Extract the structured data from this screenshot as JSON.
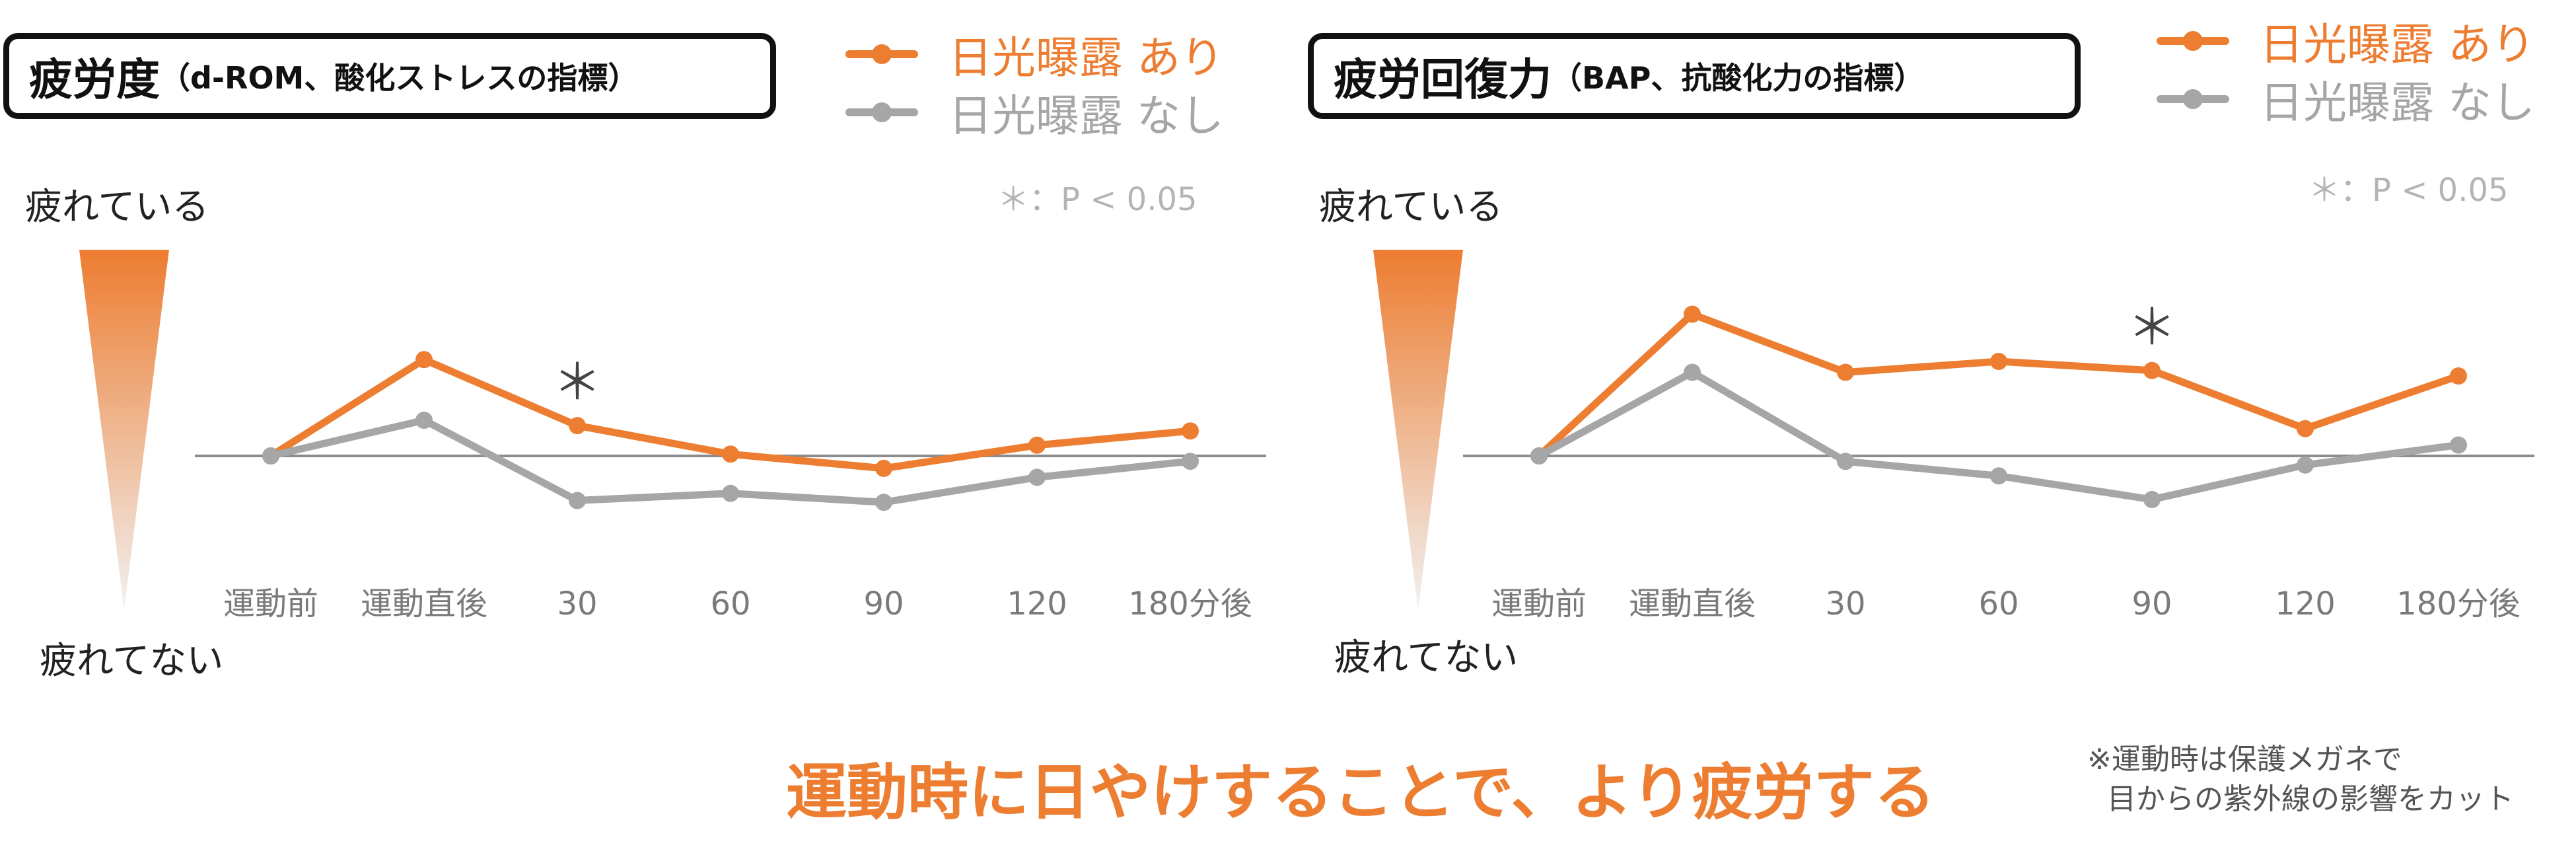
{
  "colors": {
    "with_sun": "#ed7d31",
    "without_sun": "#a6a6a6",
    "baseline": "#8c8c8c"
  },
  "chart_data": [
    {
      "type": "line",
      "title": "疲労度",
      "subtitle": "（d-ROM、酸化ストレスの指標）",
      "categories": [
        "運動前",
        "運動直後",
        "30",
        "60",
        "90",
        "120",
        "180分後"
      ],
      "series": [
        {
          "name": "日光曝露 あり",
          "values": [
            0,
            27,
            8.5,
            0.5,
            -3.5,
            3,
            7
          ]
        },
        {
          "name": "日光曝露 なし",
          "values": [
            0,
            10,
            -12.5,
            -10.5,
            -13,
            -6,
            -1.5
          ]
        }
      ],
      "ylim": [
        -20,
        35
      ],
      "y_high_label": "疲れている",
      "y_low_label": "疲れてない",
      "significance_note": "＊：P < 0.05",
      "significant_marker": {
        "category": "30",
        "symbol": "＊"
      },
      "legend_position": "top-right",
      "grid": false
    },
    {
      "type": "line",
      "title": "疲労回復力",
      "subtitle": "（BAP、抗酸化力の指標）",
      "categories": [
        "運動前",
        "運動直後",
        "30",
        "60",
        "90",
        "120",
        "180分後"
      ],
      "series": [
        {
          "name": "日光曝露 あり",
          "values": [
            0,
            39,
            23,
            26,
            23.5,
            7.5,
            22
          ]
        },
        {
          "name": "日光曝露 なし",
          "values": [
            0,
            23,
            -1.5,
            -5.5,
            -12,
            -2.5,
            3
          ]
        }
      ],
      "ylim": [
        -20,
        42
      ],
      "y_high_label": "疲れている",
      "y_low_label": "疲れてない",
      "significance_note": "＊：P < 0.05",
      "significant_marker": {
        "category": "90",
        "symbol": "＊"
      },
      "legend_position": "top-right",
      "grid": false
    }
  ],
  "conclusion": "運動時に日やけすることで、より疲労する",
  "footnote": {
    "line1": "※運動時は保護メガネで",
    "line2": "目からの紫外線の影響をカット"
  }
}
